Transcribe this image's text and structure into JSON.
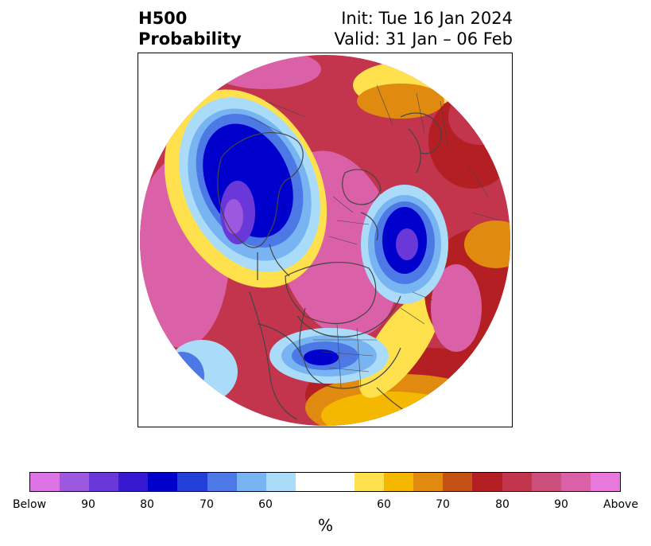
{
  "title": {
    "left_line1": "H500",
    "left_line2": "Probability",
    "right_line1": "Init: Tue 16 Jan 2024",
    "right_line2": "Valid: 31 Jan – 06 Feb"
  },
  "colorbar": {
    "colors": [
      "#dc74e6",
      "#9c59e0",
      "#6a37d9",
      "#3719d2",
      "#0000cc",
      "#2240d8",
      "#4c79e6",
      "#78b4f2",
      "#aadcfa",
      "#ffffff",
      "#ffffff",
      "#ffe14d",
      "#f5b800",
      "#e08a10",
      "#c45216",
      "#b31f23",
      "#c2354d",
      "#cc4f7c",
      "#da60a8",
      "#e878dc"
    ],
    "tick_labels": [
      "Below",
      "90",
      "80",
      "70",
      "60",
      "60",
      "70",
      "80",
      "90",
      "Above"
    ],
    "unit_label": "%"
  },
  "map": {
    "fill_colors": {
      "outer": "#c2354d",
      "pink": "#da60a8",
      "red": "#b31f23",
      "dark_orange": "#c45216",
      "orange": "#e08a10",
      "amber": "#f5b800",
      "yellow": "#ffe14d",
      "pale_blue": "#aadcfa",
      "light_blue": "#78b4f2",
      "blue": "#4c79e6",
      "royal_blue": "#2240d8",
      "navy": "#0000cc",
      "violet": "#6a37d9",
      "purple": "#9c59e0",
      "border": "#444444"
    }
  }
}
